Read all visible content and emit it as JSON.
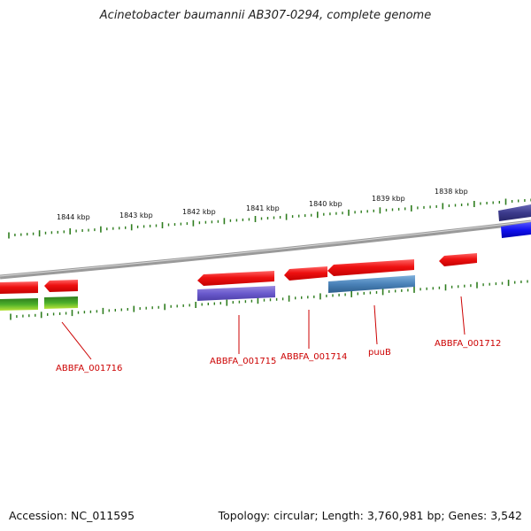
{
  "title": "Acinetobacter baumannii AB307-0294, complete genome",
  "accession": "Accession: NC_011595",
  "topology": "Topology: circular; Length: 3,760,981 bp; Genes: 3,542",
  "ticks": [
    "1844 kbp",
    "1843 kbp",
    "1842 kbp",
    "1841 kbp",
    "1840 kbp",
    "1839 kbp",
    "1838 kbp"
  ],
  "gene_labels": [
    "ABBFA_001716",
    "ABBFA_001715",
    "ABBFA_001714",
    "puuB",
    "ABBFA_001712"
  ],
  "colors": {
    "backbone": "#8a8a8a",
    "tick": "#2e7d1e",
    "gene": "#ee1111",
    "label": "#cc0000",
    "purple": "#6a5acd",
    "steel": "#4a82b8",
    "green": "#4caf2a",
    "lime": "#b8e43a",
    "navy": "#3b3a8c",
    "blue": "#1010ee"
  }
}
